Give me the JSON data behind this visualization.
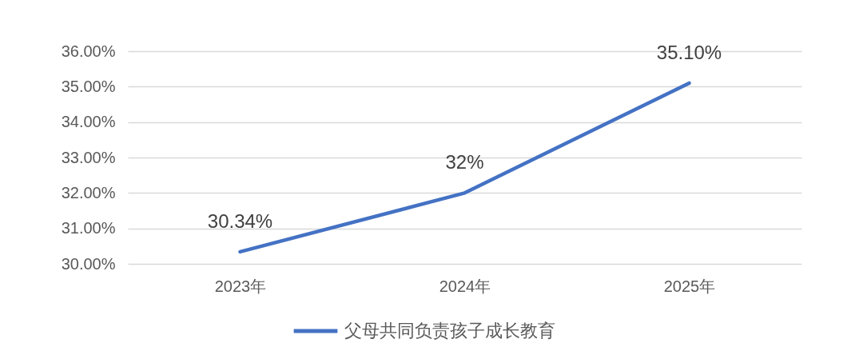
{
  "chart_data": {
    "type": "line",
    "categories": [
      "2023年",
      "2024年",
      "2025年"
    ],
    "series": [
      {
        "name": "父母共同负责孩子成长教育",
        "color": "#4472c4",
        "values": [
          30.34,
          32,
          35.1
        ],
        "value_labels": [
          "30.34%",
          "32%",
          "35.10%"
        ]
      }
    ],
    "ylim": [
      30,
      36
    ],
    "yticks": [
      {
        "value": 30,
        "label": "30.00%"
      },
      {
        "value": 31,
        "label": "31.00%"
      },
      {
        "value": 32,
        "label": "32.00%"
      },
      {
        "value": 33,
        "label": "33.00%"
      },
      {
        "value": 34,
        "label": "34.00%"
      },
      {
        "value": 35,
        "label": "35.00%"
      },
      {
        "value": 36,
        "label": "36.00%"
      }
    ],
    "grid": "y",
    "legend": "bottom",
    "marker": "none",
    "line_style": "solid"
  }
}
